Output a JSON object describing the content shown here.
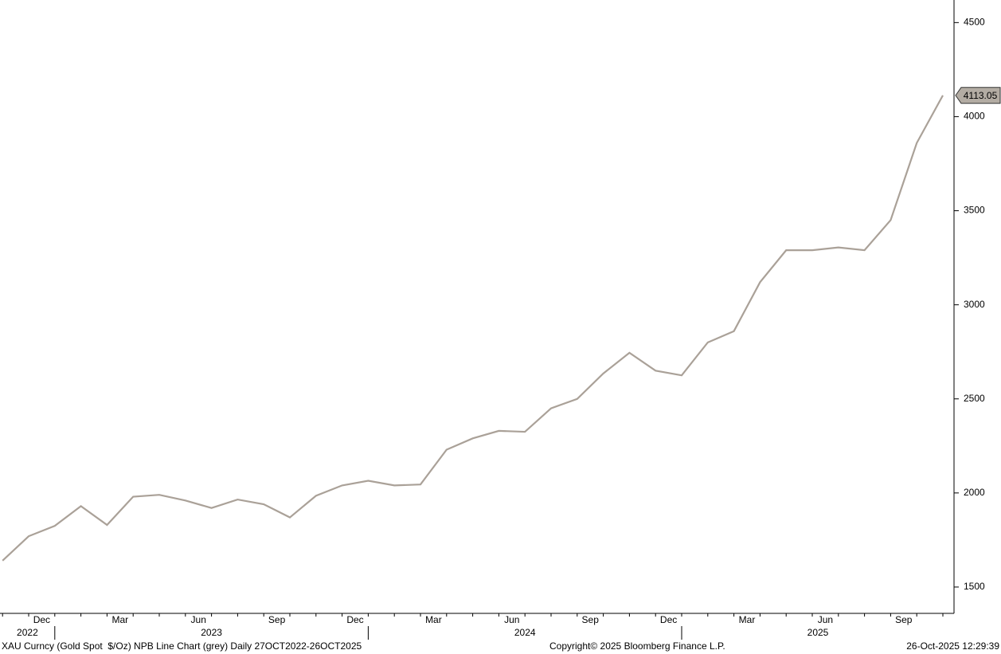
{
  "chart_data": {
    "type": "line",
    "x": [
      "2022-10",
      "2022-11",
      "2022-12",
      "2023-01",
      "2023-02",
      "2023-03",
      "2023-04",
      "2023-05",
      "2023-06",
      "2023-07",
      "2023-08",
      "2023-09",
      "2023-10",
      "2023-11",
      "2023-12",
      "2024-01",
      "2024-02",
      "2024-03",
      "2024-04",
      "2024-05",
      "2024-06",
      "2024-07",
      "2024-08",
      "2024-09",
      "2024-10",
      "2024-11",
      "2024-12",
      "2025-01",
      "2025-02",
      "2025-03",
      "2025-04",
      "2025-05",
      "2025-06",
      "2025-07",
      "2025-08",
      "2025-09",
      "2025-10"
    ],
    "series": [
      {
        "color": "#aaa198",
        "values": [
          1640,
          1770,
          1825,
          1930,
          1830,
          1980,
          1990,
          1960,
          1920,
          1965,
          1940,
          1870,
          1985,
          2040,
          2065,
          2040,
          2045,
          2230,
          2290,
          2330,
          2325,
          2450,
          2500,
          2635,
          2745,
          2650,
          2625,
          2800,
          2860,
          3120,
          3290,
          3290,
          3305,
          3290,
          3450,
          3860,
          4113.05
        ]
      }
    ],
    "ylim": [
      1360,
      4620
    ],
    "yticks": [
      1500,
      2000,
      2500,
      3000,
      3500,
      4000,
      4500
    ],
    "xticks": [
      {
        "value": "2022-12",
        "label": "Dec"
      },
      {
        "value": "2023-03",
        "label": "Mar"
      },
      {
        "value": "2023-06",
        "label": "Jun"
      },
      {
        "value": "2023-09",
        "label": "Sep"
      },
      {
        "value": "2023-12",
        "label": "Dec"
      },
      {
        "value": "2024-03",
        "label": "Mar"
      },
      {
        "value": "2024-06",
        "label": "Jun"
      },
      {
        "value": "2024-09",
        "label": "Sep"
      },
      {
        "value": "2024-12",
        "label": "Dec"
      },
      {
        "value": "2025-03",
        "label": "Mar"
      },
      {
        "value": "2025-06",
        "label": "Jun"
      },
      {
        "value": "2025-09",
        "label": "Sep"
      }
    ],
    "year_labels": [
      "2022",
      "2023",
      "2024",
      "2025"
    ],
    "description": "XAU Curncy (Gold Spot  $/Oz) NPB Line Chart (grey) Daily 27OCT2022-26OCT2025",
    "copyright": "Copyright© 2025 Bloomberg Finance L.P.",
    "timestamp": "26-Oct-2025 12:29:39"
  }
}
